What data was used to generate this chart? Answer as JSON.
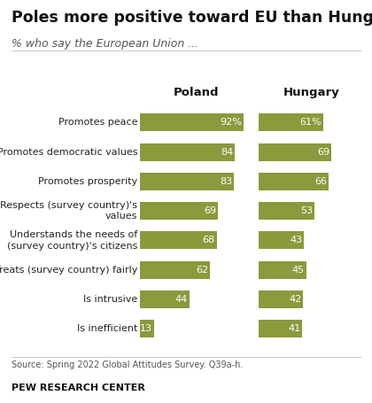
{
  "title": "Poles more positive toward EU than Hungarians",
  "subtitle": "% who say the European Union ...",
  "col_labels": [
    "Poland",
    "Hungary"
  ],
  "categories": [
    "Promotes peace",
    "Promotes democratic values",
    "Promotes prosperity",
    "Respects (survey country)'s\nvalues",
    "Understands the needs of\n(survey country)'s citizens",
    "Treats (survey country) fairly",
    "Is intrusive",
    "Is inefficient"
  ],
  "poland_values": [
    92,
    84,
    83,
    69,
    68,
    62,
    44,
    13
  ],
  "hungary_values": [
    61,
    69,
    66,
    53,
    43,
    45,
    42,
    41
  ],
  "bar_color": "#8a9a3c",
  "background_color": "#ffffff",
  "source_text": "Source: Spring 2022 Global Attitudes Survey. Q39a-h.",
  "footer_text": "PEW RESEARCH CENTER",
  "title_fontsize": 12.5,
  "subtitle_fontsize": 9,
  "category_fontsize": 8,
  "value_fontsize": 8,
  "col_header_fontsize": 9.5
}
